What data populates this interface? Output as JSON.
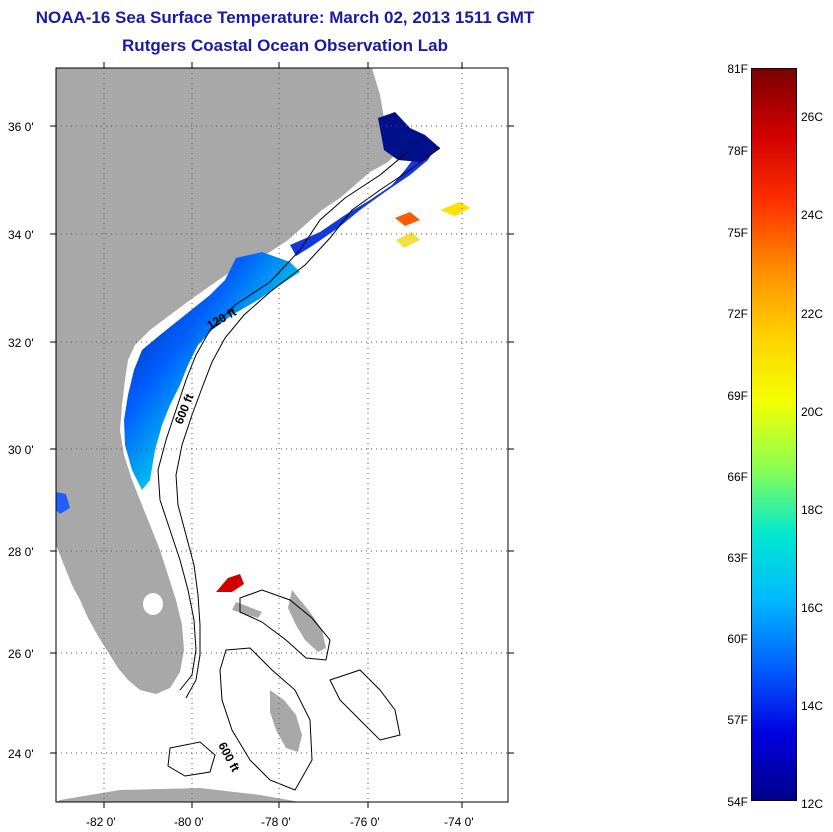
{
  "header": {
    "title": "NOAA-16 Sea Surface Temperature:  March 02, 2013 1511 GMT",
    "subtitle": "Rutgers Coastal Ocean Observation Lab"
  },
  "map": {
    "lat_ticks": [
      "36 0'",
      "34 0'",
      "32 0'",
      "30 0'",
      "28 0'",
      "26 0'",
      "24 0'"
    ],
    "lon_ticks": [
      "-82 0'",
      "-80 0'",
      "-78 0'",
      "-76 0'",
      "-74 0'"
    ],
    "contour_labels": [
      "120 ft",
      "600 ft",
      "600 ft"
    ],
    "colors": {
      "land": "#a8a8a8",
      "water": "#ffffff",
      "grid": "#555555"
    }
  },
  "colorbar": {
    "fahrenheit_labels": [
      "81F",
      "78F",
      "75F",
      "72F",
      "69F",
      "66F",
      "63F",
      "60F",
      "57F",
      "54F"
    ],
    "celsius_labels": [
      "26C",
      "24C",
      "22C",
      "20C",
      "18C",
      "16C",
      "14C",
      "12C"
    ],
    "colors": [
      "#7a0000",
      "#d10000",
      "#ff3000",
      "#ff8c00",
      "#ffd000",
      "#f4ff00",
      "#8cff50",
      "#00e8d0",
      "#00b8ff",
      "#0060ff",
      "#0000e0",
      "#00008a"
    ]
  }
}
